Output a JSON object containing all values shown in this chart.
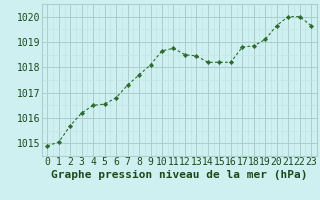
{
  "x": [
    0,
    1,
    2,
    3,
    4,
    5,
    6,
    7,
    8,
    9,
    10,
    11,
    12,
    13,
    14,
    15,
    16,
    17,
    18,
    19,
    20,
    21,
    22,
    23
  ],
  "y": [
    1014.9,
    1015.05,
    1015.7,
    1016.2,
    1016.5,
    1016.55,
    1016.8,
    1017.3,
    1017.7,
    1018.1,
    1018.65,
    1018.75,
    1018.5,
    1018.45,
    1018.2,
    1018.2,
    1018.2,
    1018.8,
    1018.85,
    1019.1,
    1019.65,
    1020.0,
    1020.0,
    1019.65
  ],
  "line_color": "#2d6a2d",
  "marker_color": "#2d6a2d",
  "bg_color": "#cff0f0",
  "grid_color_major": "#aacece",
  "grid_color_minor": "#c0e4e4",
  "title": "Graphe pression niveau de la mer (hPa)",
  "ylim": [
    1014.5,
    1020.5
  ],
  "xlim": [
    -0.5,
    23.5
  ],
  "yticks": [
    1015,
    1016,
    1017,
    1018,
    1019,
    1020
  ],
  "xtick_labels": [
    "0",
    "1",
    "2",
    "3",
    "4",
    "5",
    "6",
    "7",
    "8",
    "9",
    "10",
    "11",
    "12",
    "13",
    "14",
    "15",
    "16",
    "17",
    "18",
    "19",
    "20",
    "21",
    "22",
    "23"
  ],
  "title_fontsize": 8,
  "tick_fontsize": 7,
  "title_color": "#1a4a1a",
  "tick_color": "#1a4a1a"
}
